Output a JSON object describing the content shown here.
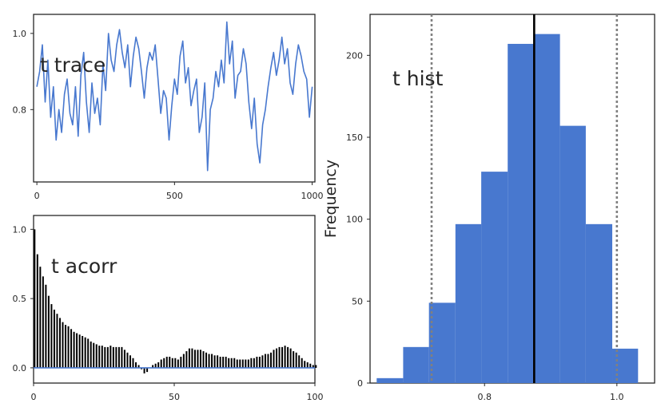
{
  "colors": {
    "series": "#4878cf",
    "bars": "#4878cf",
    "acorr_bar": "#000000",
    "zero_line": "#4878cf",
    "mean_line": "#000000",
    "hpd_line": "#808080",
    "axes": "#262626"
  },
  "chart_data": [
    {
      "type": "line",
      "title": "t trace",
      "xlim": [
        -12,
        1010
      ],
      "ylim": [
        0.61,
        1.05
      ],
      "xticks": [
        0,
        500,
        1000
      ],
      "yticks": [
        0.8,
        1.0
      ],
      "xtick_labels": [
        "0",
        "500",
        "1000"
      ],
      "ytick_labels": [
        "0.8",
        "1.0"
      ],
      "grid": false,
      "series": [
        {
          "x": [
            0,
            10,
            20,
            30,
            40,
            50,
            60,
            70,
            80,
            90,
            100,
            110,
            120,
            130,
            140,
            150,
            160,
            170,
            180,
            190,
            200,
            210,
            220,
            230,
            240,
            250,
            260,
            270,
            280,
            290,
            300,
            310,
            320,
            330,
            340,
            350,
            360,
            370,
            380,
            390,
            400,
            410,
            420,
            430,
            440,
            450,
            460,
            470,
            480,
            490,
            500,
            510,
            520,
            530,
            540,
            550,
            560,
            570,
            580,
            590,
            600,
            610,
            620,
            630,
            640,
            650,
            660,
            670,
            680,
            690,
            700,
            710,
            720,
            730,
            740,
            750,
            760,
            770,
            780,
            790,
            800,
            810,
            820,
            830,
            840,
            850,
            860,
            870,
            880,
            890,
            900,
            910,
            920,
            930,
            940,
            950,
            960,
            970,
            980,
            990,
            1000
          ],
          "y": [
            0.86,
            0.9,
            0.97,
            0.82,
            0.93,
            0.78,
            0.86,
            0.72,
            0.8,
            0.74,
            0.84,
            0.88,
            0.79,
            0.76,
            0.86,
            0.73,
            0.89,
            0.95,
            0.82,
            0.74,
            0.87,
            0.79,
            0.83,
            0.76,
            0.92,
            0.85,
            1.0,
            0.93,
            0.9,
            0.97,
            1.01,
            0.95,
            0.91,
            0.97,
            0.86,
            0.94,
            0.99,
            0.96,
            0.9,
            0.83,
            0.91,
            0.95,
            0.93,
            0.97,
            0.88,
            0.79,
            0.85,
            0.83,
            0.72,
            0.81,
            0.88,
            0.84,
            0.94,
            0.98,
            0.87,
            0.91,
            0.81,
            0.85,
            0.88,
            0.74,
            0.78,
            0.87,
            0.64,
            0.8,
            0.83,
            0.9,
            0.86,
            0.93,
            0.87,
            1.03,
            0.92,
            0.98,
            0.83,
            0.89,
            0.9,
            0.96,
            0.92,
            0.82,
            0.75,
            0.83,
            0.71,
            0.66,
            0.76,
            0.8,
            0.86,
            0.91,
            0.95,
            0.89,
            0.93,
            0.99,
            0.92,
            0.96,
            0.87,
            0.84,
            0.92,
            0.97,
            0.94,
            0.9,
            0.88,
            0.78,
            0.86
          ]
        }
      ]
    },
    {
      "type": "bar",
      "title": "t acorr",
      "xlim": [
        0,
        100
      ],
      "ylim": [
        -0.11,
        1.1
      ],
      "xticks": [
        0,
        50,
        100
      ],
      "yticks": [
        0,
        0.5,
        1.0
      ],
      "xtick_labels": [
        "0",
        "50",
        "100"
      ],
      "ytick_labels": [
        "0.0",
        "0.5",
        "1.0"
      ],
      "grid": false,
      "lags": [
        0,
        1,
        2,
        3,
        4,
        5,
        6,
        7,
        8,
        9,
        10,
        11,
        12,
        13,
        14,
        15,
        16,
        17,
        18,
        19,
        20,
        21,
        22,
        23,
        24,
        25,
        26,
        27,
        28,
        29,
        30,
        31,
        32,
        33,
        34,
        35,
        36,
        37,
        38,
        39,
        40,
        41,
        42,
        43,
        44,
        45,
        46,
        47,
        48,
        49,
        50,
        51,
        52,
        53,
        54,
        55,
        56,
        57,
        58,
        59,
        60,
        61,
        62,
        63,
        64,
        65,
        66,
        67,
        68,
        69,
        70,
        71,
        72,
        73,
        74,
        75,
        76,
        77,
        78,
        79,
        80,
        81,
        82,
        83,
        84,
        85,
        86,
        87,
        88,
        89,
        90,
        91,
        92,
        93,
        94,
        95,
        96,
        97,
        98,
        99,
        100
      ],
      "values": [
        1.0,
        0.82,
        0.73,
        0.66,
        0.6,
        0.52,
        0.46,
        0.42,
        0.39,
        0.36,
        0.33,
        0.31,
        0.3,
        0.28,
        0.26,
        0.25,
        0.24,
        0.23,
        0.22,
        0.21,
        0.19,
        0.18,
        0.17,
        0.16,
        0.16,
        0.15,
        0.15,
        0.16,
        0.15,
        0.15,
        0.15,
        0.15,
        0.13,
        0.11,
        0.09,
        0.07,
        0.04,
        0.02,
        -0.01,
        -0.04,
        -0.03,
        0.0,
        0.02,
        0.03,
        0.04,
        0.06,
        0.07,
        0.08,
        0.08,
        0.07,
        0.07,
        0.06,
        0.08,
        0.1,
        0.12,
        0.14,
        0.14,
        0.13,
        0.13,
        0.13,
        0.12,
        0.11,
        0.1,
        0.1,
        0.09,
        0.09,
        0.08,
        0.08,
        0.08,
        0.07,
        0.07,
        0.07,
        0.06,
        0.06,
        0.06,
        0.06,
        0.06,
        0.07,
        0.07,
        0.08,
        0.08,
        0.09,
        0.1,
        0.1,
        0.11,
        0.13,
        0.14,
        0.15,
        0.15,
        0.16,
        0.15,
        0.14,
        0.12,
        0.11,
        0.09,
        0.07,
        0.05,
        0.04,
        0.03,
        0.02,
        0.02
      ]
    },
    {
      "type": "bar",
      "title": "t hist",
      "ylabel": "Frequency",
      "xlim": [
        0.627,
        1.057
      ],
      "ylim": [
        0,
        225
      ],
      "xticks": [
        0.8,
        1.0
      ],
      "yticks": [
        0,
        50,
        100,
        150,
        200
      ],
      "xtick_labels": [
        "0.8",
        "1.0"
      ],
      "ytick_labels": [
        "0",
        "50",
        "100",
        "150",
        "200"
      ],
      "grid": false,
      "bin_edges": [
        0.637,
        0.677,
        0.716,
        0.756,
        0.795,
        0.835,
        0.874,
        0.914,
        0.953,
        0.993,
        1.032
      ],
      "counts": [
        3,
        22,
        49,
        97,
        129,
        207,
        213,
        157,
        97,
        21
      ],
      "mean": 0.875,
      "hpd": [
        0.72,
        1.0
      ]
    }
  ]
}
